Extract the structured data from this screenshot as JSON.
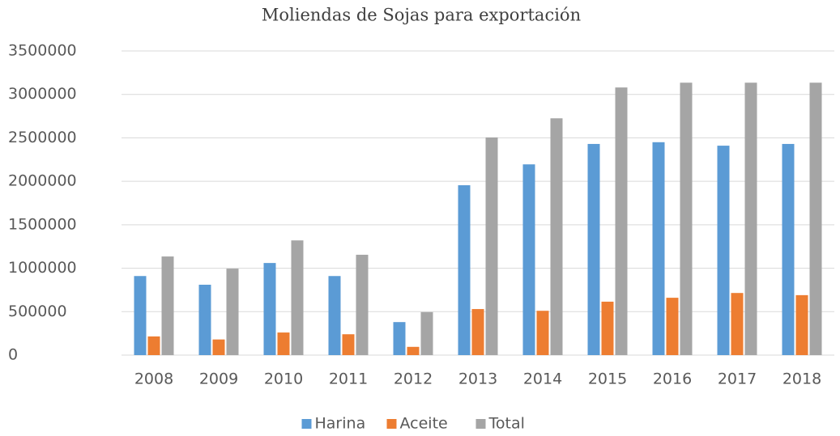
{
  "chart_data": {
    "type": "bar",
    "title": "Moliendas de Sojas para exportación",
    "categories": [
      "2008",
      "2009",
      "2010",
      "2011",
      "2012",
      "2013",
      "2014",
      "2015",
      "2016",
      "2017",
      "2018"
    ],
    "series": [
      {
        "name": "Harina",
        "color": "#5b9bd5",
        "values": [
          910000,
          810000,
          1060000,
          910000,
          380000,
          1955000,
          2195000,
          2430000,
          2450000,
          2410000,
          2430000
        ]
      },
      {
        "name": "Aceite",
        "color": "#ed7d31",
        "values": [
          215000,
          180000,
          260000,
          240000,
          95000,
          530000,
          510000,
          615000,
          660000,
          715000,
          690000
        ]
      },
      {
        "name": "Total",
        "color": "#a5a5a5",
        "values": [
          1135000,
          995000,
          1320000,
          1155000,
          495000,
          2505000,
          2725000,
          3080000,
          3135000,
          3135000,
          3135000
        ]
      }
    ],
    "ylim": [
      0,
      3500000
    ],
    "yticks": [
      0,
      500000,
      1000000,
      1500000,
      2000000,
      2500000,
      3000000,
      3500000
    ],
    "grid": true,
    "legend": "bottom"
  }
}
